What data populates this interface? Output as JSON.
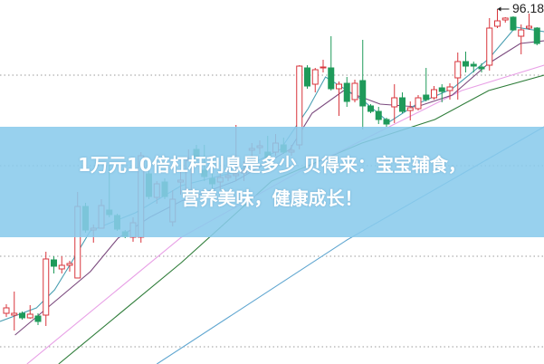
{
  "banner": {
    "line1": "1万元10倍杠杆利息是多少 贝得来：宝宝辅食，",
    "line2": "营养美味，健康成长！"
  },
  "chart_data": {
    "type": "candlestick",
    "title": "",
    "xlabel": "",
    "ylabel": "",
    "ylim": [
      76.58,
      96.68
    ],
    "grid": "horizontal-dotted",
    "gridlines": [
      92.53,
      87.53,
      82.53,
      77.53
    ],
    "max_label": "96.18",
    "max_value": 96.18,
    "colors": {
      "up": "#d8353c",
      "down": "#1f9a5a",
      "ma1": "#4a9fb2",
      "ma2": "#7b4a7e",
      "ma3": "#e8a0e6",
      "ma4": "#2f7d3a",
      "ma5": "#5fa6d0",
      "grid": "#999999"
    },
    "candles": [
      [
        79.38,
        79.68,
        79.88,
        79.18
      ],
      [
        79.28,
        79.38,
        80.58,
        78.43
      ],
      [
        79.38,
        79.13,
        79.48,
        79.03
      ],
      [
        79.13,
        79.33,
        79.83,
        79.08
      ],
      [
        79.23,
        78.93,
        79.38,
        78.73
      ],
      [
        79.28,
        82.38,
        82.78,
        78.68
      ],
      [
        82.33,
        81.98,
        82.53,
        81.58
      ],
      [
        81.83,
        82.03,
        82.53,
        81.58
      ],
      [
        82.03,
        82.13,
        82.28,
        81.68
      ],
      [
        81.33,
        85.28,
        86.08,
        81.33
      ],
      [
        85.28,
        83.98,
        85.48,
        83.83
      ],
      [
        83.98,
        84.08,
        84.28,
        83.28
      ],
      [
        84.08,
        85.33,
        85.68,
        84.08
      ],
      [
        85.08,
        84.83,
        87.58,
        84.68
      ],
      [
        84.78,
        84.03,
        84.88,
        83.93
      ],
      [
        83.88,
        83.63,
        83.98,
        83.53
      ],
      [
        83.58,
        84.38,
        84.68,
        83.33
      ],
      [
        83.58,
        88.08,
        88.28,
        83.28
      ],
      [
        87.08,
        85.83,
        87.43,
        85.68
      ],
      [
        85.78,
        86.53,
        86.68,
        85.43
      ],
      [
        86.63,
        85.83,
        86.83,
        85.68
      ],
      [
        84.43,
        85.68,
        86.18,
        84.18
      ],
      [
        86.63,
        86.73,
        87.18,
        85.93
      ],
      [
        86.18,
        87.83,
        88.43,
        86.08
      ],
      [
        88.43,
        88.03,
        88.68,
        87.78
      ],
      [
        87.28,
        86.93,
        88.68,
        86.68
      ],
      [
        86.83,
        86.53,
        87.43,
        86.18
      ],
      [
        86.63,
        86.88,
        87.18,
        86.18
      ],
      [
        86.88,
        86.98,
        87.28,
        86.68
      ],
      [
        86.98,
        87.08,
        89.78,
        86.68
      ],
      [
        87.13,
        87.23,
        87.78,
        86.68
      ],
      [
        88.38,
        88.48,
        88.78,
        87.93
      ],
      [
        88.53,
        88.63,
        88.93,
        88.18
      ],
      [
        88.28,
        87.98,
        89.18,
        87.43
      ],
      [
        88.28,
        88.78,
        89.28,
        88.08
      ],
      [
        88.68,
        88.28,
        89.08,
        88.18
      ],
      [
        88.28,
        88.38,
        88.68,
        88.08
      ],
      [
        88.68,
        93.03,
        93.08,
        88.43
      ],
      [
        92.93,
        91.93,
        93.08,
        91.78
      ],
      [
        92.03,
        92.83,
        92.93,
        91.58
      ],
      [
        92.93,
        92.98,
        93.38,
        92.68
      ],
      [
        92.93,
        91.78,
        94.68,
        91.68
      ],
      [
        91.78,
        92.03,
        92.18,
        90.28
      ],
      [
        92.08,
        91.08,
        92.43,
        90.78
      ],
      [
        91.18,
        92.08,
        92.28,
        91.03
      ],
      [
        92.23,
        90.83,
        94.48,
        89.53
      ],
      [
        90.83,
        90.53,
        90.93,
        90.43
      ],
      [
        90.53,
        90.08,
        90.78,
        89.83
      ],
      [
        90.08,
        89.83,
        90.18,
        89.68
      ],
      [
        90.78,
        91.28,
        92.03,
        89.88
      ],
      [
        91.28,
        90.53,
        91.58,
        90.43
      ],
      [
        90.58,
        90.73,
        91.08,
        90.03
      ],
      [
        90.68,
        91.28,
        91.43,
        90.58
      ],
      [
        91.43,
        91.18,
        92.93,
        91.08
      ],
      [
        91.28,
        91.73,
        91.93,
        91.18
      ],
      [
        91.83,
        91.63,
        92.03,
        91.03
      ],
      [
        91.68,
        91.88,
        92.08,
        91.18
      ],
      [
        92.38,
        93.28,
        93.78,
        91.18
      ],
      [
        93.28,
        93.03,
        93.83,
        92.68
      ],
      [
        93.13,
        93.03,
        93.28,
        92.68
      ],
      [
        92.98,
        92.88,
        93.18,
        92.68
      ],
      [
        93.08,
        95.13,
        95.68,
        92.78
      ],
      [
        95.23,
        95.53,
        96.18,
        95.13
      ],
      [
        95.58,
        95.68,
        95.73,
        95.43
      ],
      [
        95.73,
        95.03,
        95.78,
        94.98
      ],
      [
        94.68,
        95.03,
        95.33,
        93.68
      ],
      [
        95.13,
        95.23,
        95.93,
        95.03
      ],
      [
        95.13,
        94.28,
        95.18,
        94.18
      ]
    ],
    "candle_fields": [
      "open",
      "close",
      "high",
      "low"
    ],
    "moving_averages": [
      {
        "color_key": "ma5",
        "points": [
          [
            19.0,
            76.58
          ],
          [
            43.0,
            83.43
          ],
          [
            67.9,
            89.68
          ]
        ]
      },
      {
        "color_key": "ma4",
        "points": [
          [
            6.6,
            76.58
          ],
          [
            22.1,
            82.18
          ],
          [
            33.5,
            86.68
          ],
          [
            44.9,
            88.78
          ],
          [
            54.1,
            90.08
          ],
          [
            60.9,
            91.68
          ],
          [
            67.9,
            92.53
          ]
        ]
      },
      {
        "color_key": "ma3",
        "points": [
          [
            2.6,
            76.58
          ],
          [
            22.1,
            83.58
          ],
          [
            36.9,
            87.18
          ],
          [
            47.2,
            89.43
          ],
          [
            57.5,
            91.68
          ],
          [
            67.9,
            93.08
          ]
        ]
      },
      {
        "color_key": "ma2",
        "points": [
          [
            1.1,
            78.18
          ],
          [
            10.6,
            81.68
          ],
          [
            14.1,
            83.53
          ],
          [
            18.1,
            84.68
          ],
          [
            22.1,
            85.58
          ],
          [
            28.9,
            86.68
          ],
          [
            35.8,
            88.43
          ],
          [
            38.6,
            90.43
          ],
          [
            42.6,
            91.68
          ],
          [
            47.2,
            90.93
          ],
          [
            51.8,
            90.78
          ],
          [
            56.3,
            91.43
          ],
          [
            60.9,
            93.18
          ],
          [
            64.9,
            94.28
          ],
          [
            67.9,
            94.43
          ]
        ]
      },
      {
        "color_key": "ma1",
        "points": [
          [
            -0.8,
            78.93
          ],
          [
            3.8,
            79.68
          ],
          [
            6.1,
            80.68
          ],
          [
            8.9,
            82.68
          ],
          [
            10.6,
            83.93
          ],
          [
            16.3,
            84.93
          ],
          [
            22.1,
            86.43
          ],
          [
            28.9,
            87.18
          ],
          [
            34.6,
            88.43
          ],
          [
            38.1,
            90.68
          ],
          [
            40.3,
            92.43
          ],
          [
            44.9,
            91.18
          ],
          [
            48.3,
            89.93
          ],
          [
            51.8,
            90.93
          ],
          [
            56.3,
            91.78
          ],
          [
            60.9,
            93.43
          ],
          [
            64.3,
            95.18
          ],
          [
            67.9,
            94.93
          ]
        ]
      }
    ]
  }
}
